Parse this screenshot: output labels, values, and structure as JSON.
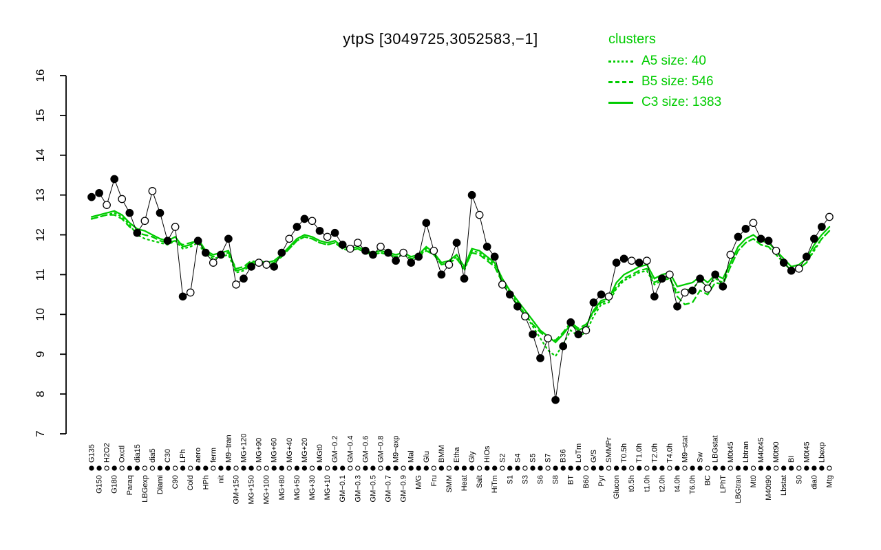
{
  "page": {
    "background": "#ffffff"
  },
  "chart_data": {
    "type": "line",
    "title": "ytpS [3049725,3052583,−1]",
    "xlabel": "",
    "ylabel": "",
    "ylim": [
      7,
      16
    ],
    "yticks": [
      7,
      8,
      9,
      10,
      11,
      12,
      13,
      14,
      15,
      16
    ],
    "grid": false,
    "colors": {
      "cluster_green": "#00CC00",
      "gene_black": "#000000"
    },
    "legend": {
      "title": "clusters",
      "position": "top-right",
      "entries": [
        {
          "name": "A5",
          "style": "dotted",
          "label": "A5 size: 40"
        },
        {
          "name": "B5",
          "style": "dashed",
          "label": "B5 size: 546"
        },
        {
          "name": "C3",
          "style": "solid",
          "label": "C3 size: 1383"
        }
      ]
    },
    "categories": [
      "G135",
      "G150",
      "H2O2",
      "G180",
      "Oxctl",
      "Paraq",
      "dia15",
      "LBGexp",
      "dia5",
      "Diami",
      "C30",
      "C90",
      "LPh",
      "Cold",
      "aero",
      "HPh",
      "ferm",
      "nit",
      "M9−tran",
      "GM+150",
      "MG+120",
      "MG+150",
      "MG+90",
      "MG+100",
      "MG+60",
      "MG+80",
      "MG+40",
      "MG+50",
      "MG+20",
      "MG+30",
      "MGt0",
      "MG+10",
      "GM−0.2",
      "GM−0.1",
      "GM−0.4",
      "GM−0.3",
      "GM−0.6",
      "GM−0.5",
      "GM−0.8",
      "GM−0.7",
      "M9−exp",
      "GM−0.9",
      "Mal",
      "M/G",
      "Glu",
      "Fru",
      "BMM",
      "SMM",
      "Etha",
      "Heat",
      "Gly",
      "Salt",
      "HiOs",
      "HiTm",
      "S2",
      "S1",
      "S4",
      "S3",
      "S5",
      "S6",
      "S7",
      "S8",
      "B36",
      "BT",
      "LoTm",
      "B60",
      "G/S",
      "Pyr",
      "SMMPr",
      "Glucon",
      "T0.5h",
      "t0.5h",
      "T1.0h",
      "t1.0h",
      "T2.0h",
      "t2.0h",
      "T4.0h",
      "t4.0h",
      "M9−stat",
      "T6.0h",
      "Sw",
      "BC",
      "LBGstat",
      "LPhT",
      "M0t45",
      "LBGtran",
      "Lbtran",
      "Mt0",
      "M40t45",
      "M40t90",
      "M0t90",
      "Lbstat",
      "BI",
      "S0",
      "M0t45",
      "dia0",
      "Lbexp",
      "Mtg"
    ],
    "series": [
      {
        "name": "A5",
        "type": "line",
        "style": "dotted",
        "color": "#00CC00",
        "values": [
          12.4,
          12.45,
          12.5,
          12.55,
          12.45,
          12.25,
          12.0,
          11.9,
          11.85,
          11.8,
          11.75,
          11.85,
          11.65,
          11.7,
          11.8,
          11.5,
          11.4,
          11.45,
          11.5,
          11.05,
          11.1,
          11.25,
          11.3,
          11.25,
          11.3,
          11.45,
          11.65,
          11.85,
          11.95,
          11.9,
          11.8,
          11.75,
          11.8,
          11.65,
          11.6,
          11.65,
          11.55,
          11.5,
          11.55,
          11.5,
          11.45,
          11.5,
          11.4,
          11.45,
          11.65,
          11.5,
          11.25,
          11.3,
          11.45,
          11.1,
          11.6,
          11.55,
          11.4,
          11.25,
          10.85,
          10.55,
          10.3,
          10.0,
          9.7,
          9.4,
          9.1,
          8.95,
          9.25,
          9.6,
          9.45,
          9.55,
          9.95,
          10.25,
          10.3,
          10.65,
          10.85,
          10.95,
          11.05,
          11.1,
          10.75,
          10.85,
          10.9,
          10.55,
          10.6,
          10.65,
          10.85,
          10.7,
          10.9,
          10.8,
          11.2,
          11.6,
          11.8,
          11.9,
          11.75,
          11.7,
          11.5,
          11.3,
          11.1,
          11.15,
          11.3,
          11.6,
          11.9,
          12.1
        ]
      },
      {
        "name": "B5",
        "type": "line",
        "style": "dashed",
        "color": "#00CC00",
        "values": [
          12.4,
          12.45,
          12.5,
          12.5,
          12.4,
          12.2,
          12.05,
          12.0,
          11.95,
          11.85,
          11.8,
          11.85,
          11.75,
          11.8,
          11.85,
          11.55,
          11.45,
          11.5,
          11.55,
          11.15,
          11.2,
          11.35,
          11.3,
          11.25,
          11.3,
          11.45,
          11.65,
          11.85,
          11.95,
          11.9,
          11.8,
          11.75,
          11.8,
          11.65,
          11.6,
          11.65,
          11.55,
          11.5,
          11.55,
          11.5,
          11.45,
          11.5,
          11.4,
          11.45,
          11.6,
          11.5,
          11.25,
          11.3,
          11.4,
          11.15,
          11.55,
          11.5,
          11.35,
          11.2,
          10.8,
          10.5,
          10.25,
          10.0,
          9.75,
          9.55,
          9.4,
          9.35,
          9.55,
          9.8,
          9.65,
          9.75,
          10.05,
          10.3,
          10.35,
          10.7,
          10.9,
          11.0,
          11.1,
          11.15,
          10.8,
          10.9,
          10.95,
          10.45,
          10.25,
          10.3,
          10.6,
          10.5,
          10.8,
          10.75,
          11.2,
          11.6,
          11.8,
          11.9,
          11.75,
          11.7,
          11.5,
          11.3,
          11.1,
          11.15,
          11.3,
          11.65,
          11.9,
          12.1
        ]
      },
      {
        "name": "C3",
        "type": "line",
        "style": "solid",
        "color": "#00CC00",
        "values": [
          12.45,
          12.5,
          12.55,
          12.6,
          12.5,
          12.3,
          12.15,
          12.1,
          12.0,
          11.9,
          11.85,
          11.95,
          11.7,
          11.75,
          11.9,
          11.6,
          11.5,
          11.55,
          11.6,
          11.1,
          11.15,
          11.3,
          11.35,
          11.3,
          11.35,
          11.5,
          11.7,
          11.9,
          12.0,
          11.95,
          11.85,
          11.8,
          11.85,
          11.7,
          11.65,
          11.7,
          11.6,
          11.55,
          11.6,
          11.55,
          11.5,
          11.55,
          11.45,
          11.5,
          11.7,
          11.55,
          11.3,
          11.35,
          11.5,
          11.2,
          11.65,
          11.6,
          11.45,
          11.3,
          10.9,
          10.6,
          10.35,
          10.1,
          9.85,
          9.6,
          9.45,
          9.3,
          9.5,
          9.75,
          9.6,
          9.7,
          10.1,
          10.35,
          10.4,
          10.8,
          11.0,
          11.1,
          11.2,
          11.25,
          10.9,
          11.0,
          11.05,
          10.7,
          10.75,
          10.8,
          10.95,
          10.8,
          11.0,
          10.9,
          11.3,
          11.7,
          11.9,
          12.0,
          11.85,
          11.8,
          11.6,
          11.4,
          11.2,
          11.25,
          11.4,
          11.75,
          12.0,
          12.2
        ]
      },
      {
        "name": "ytpS",
        "type": "line+points",
        "style": "solid",
        "color": "#000000",
        "values": [
          12.95,
          13.05,
          12.75,
          13.4,
          12.9,
          12.55,
          12.05,
          12.35,
          13.1,
          12.55,
          11.85,
          12.2,
          10.45,
          10.55,
          11.85,
          11.55,
          11.3,
          11.5,
          11.9,
          10.75,
          10.9,
          11.2,
          11.3,
          11.25,
          11.2,
          11.55,
          11.9,
          12.2,
          12.4,
          12.35,
          12.1,
          11.95,
          12.05,
          11.75,
          11.65,
          11.8,
          11.6,
          11.5,
          11.7,
          11.55,
          11.35,
          11.55,
          11.3,
          11.45,
          12.3,
          11.6,
          11.0,
          11.25,
          11.8,
          10.9,
          13.0,
          12.5,
          11.7,
          11.45,
          10.75,
          10.5,
          10.2,
          9.95,
          9.5,
          8.9,
          9.4,
          7.85,
          9.2,
          9.8,
          9.5,
          9.6,
          10.3,
          10.5,
          10.45,
          11.3,
          11.4,
          11.35,
          11.3,
          11.35,
          10.45,
          10.9,
          11.0,
          10.2,
          10.55,
          10.6,
          10.9,
          10.65,
          11.0,
          10.7,
          11.5,
          11.95,
          12.15,
          12.3,
          11.9,
          11.85,
          11.6,
          11.3,
          11.1,
          11.15,
          11.45,
          11.9,
          12.2,
          12.45
        ],
        "point_filled": [
          1,
          1,
          0,
          1,
          0,
          1,
          1,
          0,
          0,
          1,
          1,
          0,
          1,
          0,
          1,
          1,
          0,
          1,
          1,
          0,
          1,
          1,
          0,
          0,
          1,
          1,
          0,
          1,
          1,
          0,
          1,
          0,
          1,
          1,
          0,
          0,
          1,
          1,
          0,
          1,
          1,
          0,
          1,
          1,
          1,
          0,
          1,
          0,
          1,
          1,
          1,
          0,
          1,
          1,
          0,
          1,
          1,
          0,
          1,
          1,
          0,
          1,
          1,
          1,
          1,
          0,
          1,
          1,
          0,
          1,
          1,
          0,
          1,
          0,
          1,
          1,
          0,
          1,
          0,
          1,
          1,
          0,
          1,
          1,
          0,
          1,
          1,
          0,
          1,
          1,
          0,
          1,
          1,
          0,
          1,
          1,
          1,
          0
        ]
      }
    ]
  }
}
